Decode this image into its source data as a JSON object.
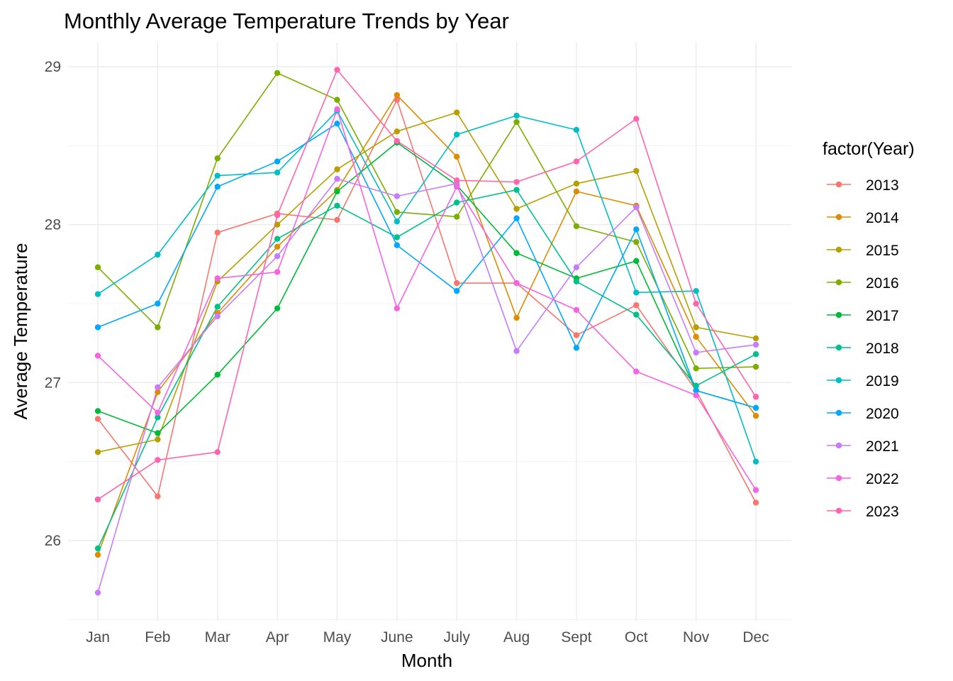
{
  "chart_data": {
    "type": "line",
    "title": "Monthly Average Temperature Trends by Year",
    "xlabel": "Month",
    "ylabel": "Average Temperature",
    "categories": [
      "Jan",
      "Feb",
      "Mar",
      "Apr",
      "May",
      "June",
      "July",
      "Aug",
      "Sept",
      "Oct",
      "Nov",
      "Dec"
    ],
    "ylim": [
      25.5,
      29.2
    ],
    "yticks": [
      26,
      27,
      28,
      29
    ],
    "grid": true,
    "legend": {
      "title": "factor(Year)",
      "position": "right"
    },
    "series": [
      {
        "name": "2013",
        "color": "#F8766D",
        "values": [
          26.77,
          26.28,
          27.95,
          28.07,
          28.03,
          28.79,
          27.63,
          27.63,
          27.3,
          27.49,
          26.95,
          26.24
        ]
      },
      {
        "name": "2014",
        "color": "#DE8C00",
        "values": [
          25.91,
          26.94,
          27.44,
          27.86,
          28.22,
          28.82,
          28.43,
          27.41,
          28.21,
          28.12,
          27.29,
          26.79
        ]
      },
      {
        "name": "2015",
        "color": "#B79F00",
        "values": [
          26.56,
          26.64,
          27.64,
          28.0,
          28.35,
          28.59,
          28.71,
          28.1,
          28.26,
          28.34,
          27.35,
          27.28
        ]
      },
      {
        "name": "2016",
        "color": "#7CAE00",
        "values": [
          27.73,
          27.35,
          28.42,
          28.96,
          28.79,
          28.08,
          28.05,
          28.65,
          27.99,
          27.89,
          27.09,
          27.1
        ]
      },
      {
        "name": "2017",
        "color": "#00BA38",
        "values": [
          26.82,
          26.68,
          27.05,
          27.47,
          28.21,
          28.52,
          28.25,
          27.82,
          27.66,
          27.77,
          26.95,
          26.84
        ]
      },
      {
        "name": "2018",
        "color": "#00C08B",
        "values": [
          25.95,
          26.78,
          27.48,
          27.91,
          28.12,
          27.92,
          28.14,
          28.22,
          27.64,
          27.43,
          26.98,
          27.18
        ]
      },
      {
        "name": "2019",
        "color": "#00BFC4",
        "values": [
          27.56,
          27.81,
          28.31,
          28.33,
          28.72,
          28.02,
          28.57,
          28.69,
          28.6,
          27.57,
          27.58,
          26.5
        ]
      },
      {
        "name": "2020",
        "color": "#00A9FF",
        "values": [
          27.35,
          27.5,
          28.24,
          28.4,
          28.64,
          27.87,
          27.58,
          28.04,
          27.22,
          27.97,
          26.95,
          26.84
        ]
      },
      {
        "name": "2021",
        "color": "#C77CFF",
        "values": [
          25.67,
          26.97,
          27.42,
          27.8,
          28.29,
          28.18,
          28.26,
          27.2,
          27.73,
          28.11,
          27.19,
          27.24
        ]
      },
      {
        "name": "2022",
        "color": "#F564E3",
        "values": [
          27.17,
          26.81,
          27.66,
          27.7,
          28.73,
          27.47,
          28.24,
          27.63,
          27.46,
          27.07,
          26.92,
          26.32
        ]
      },
      {
        "name": "2023",
        "color": "#FF64B0",
        "values": [
          26.26,
          26.51,
          26.56,
          28.06,
          28.98,
          28.53,
          28.28,
          28.27,
          28.4,
          28.67,
          27.5,
          26.91
        ]
      }
    ]
  }
}
